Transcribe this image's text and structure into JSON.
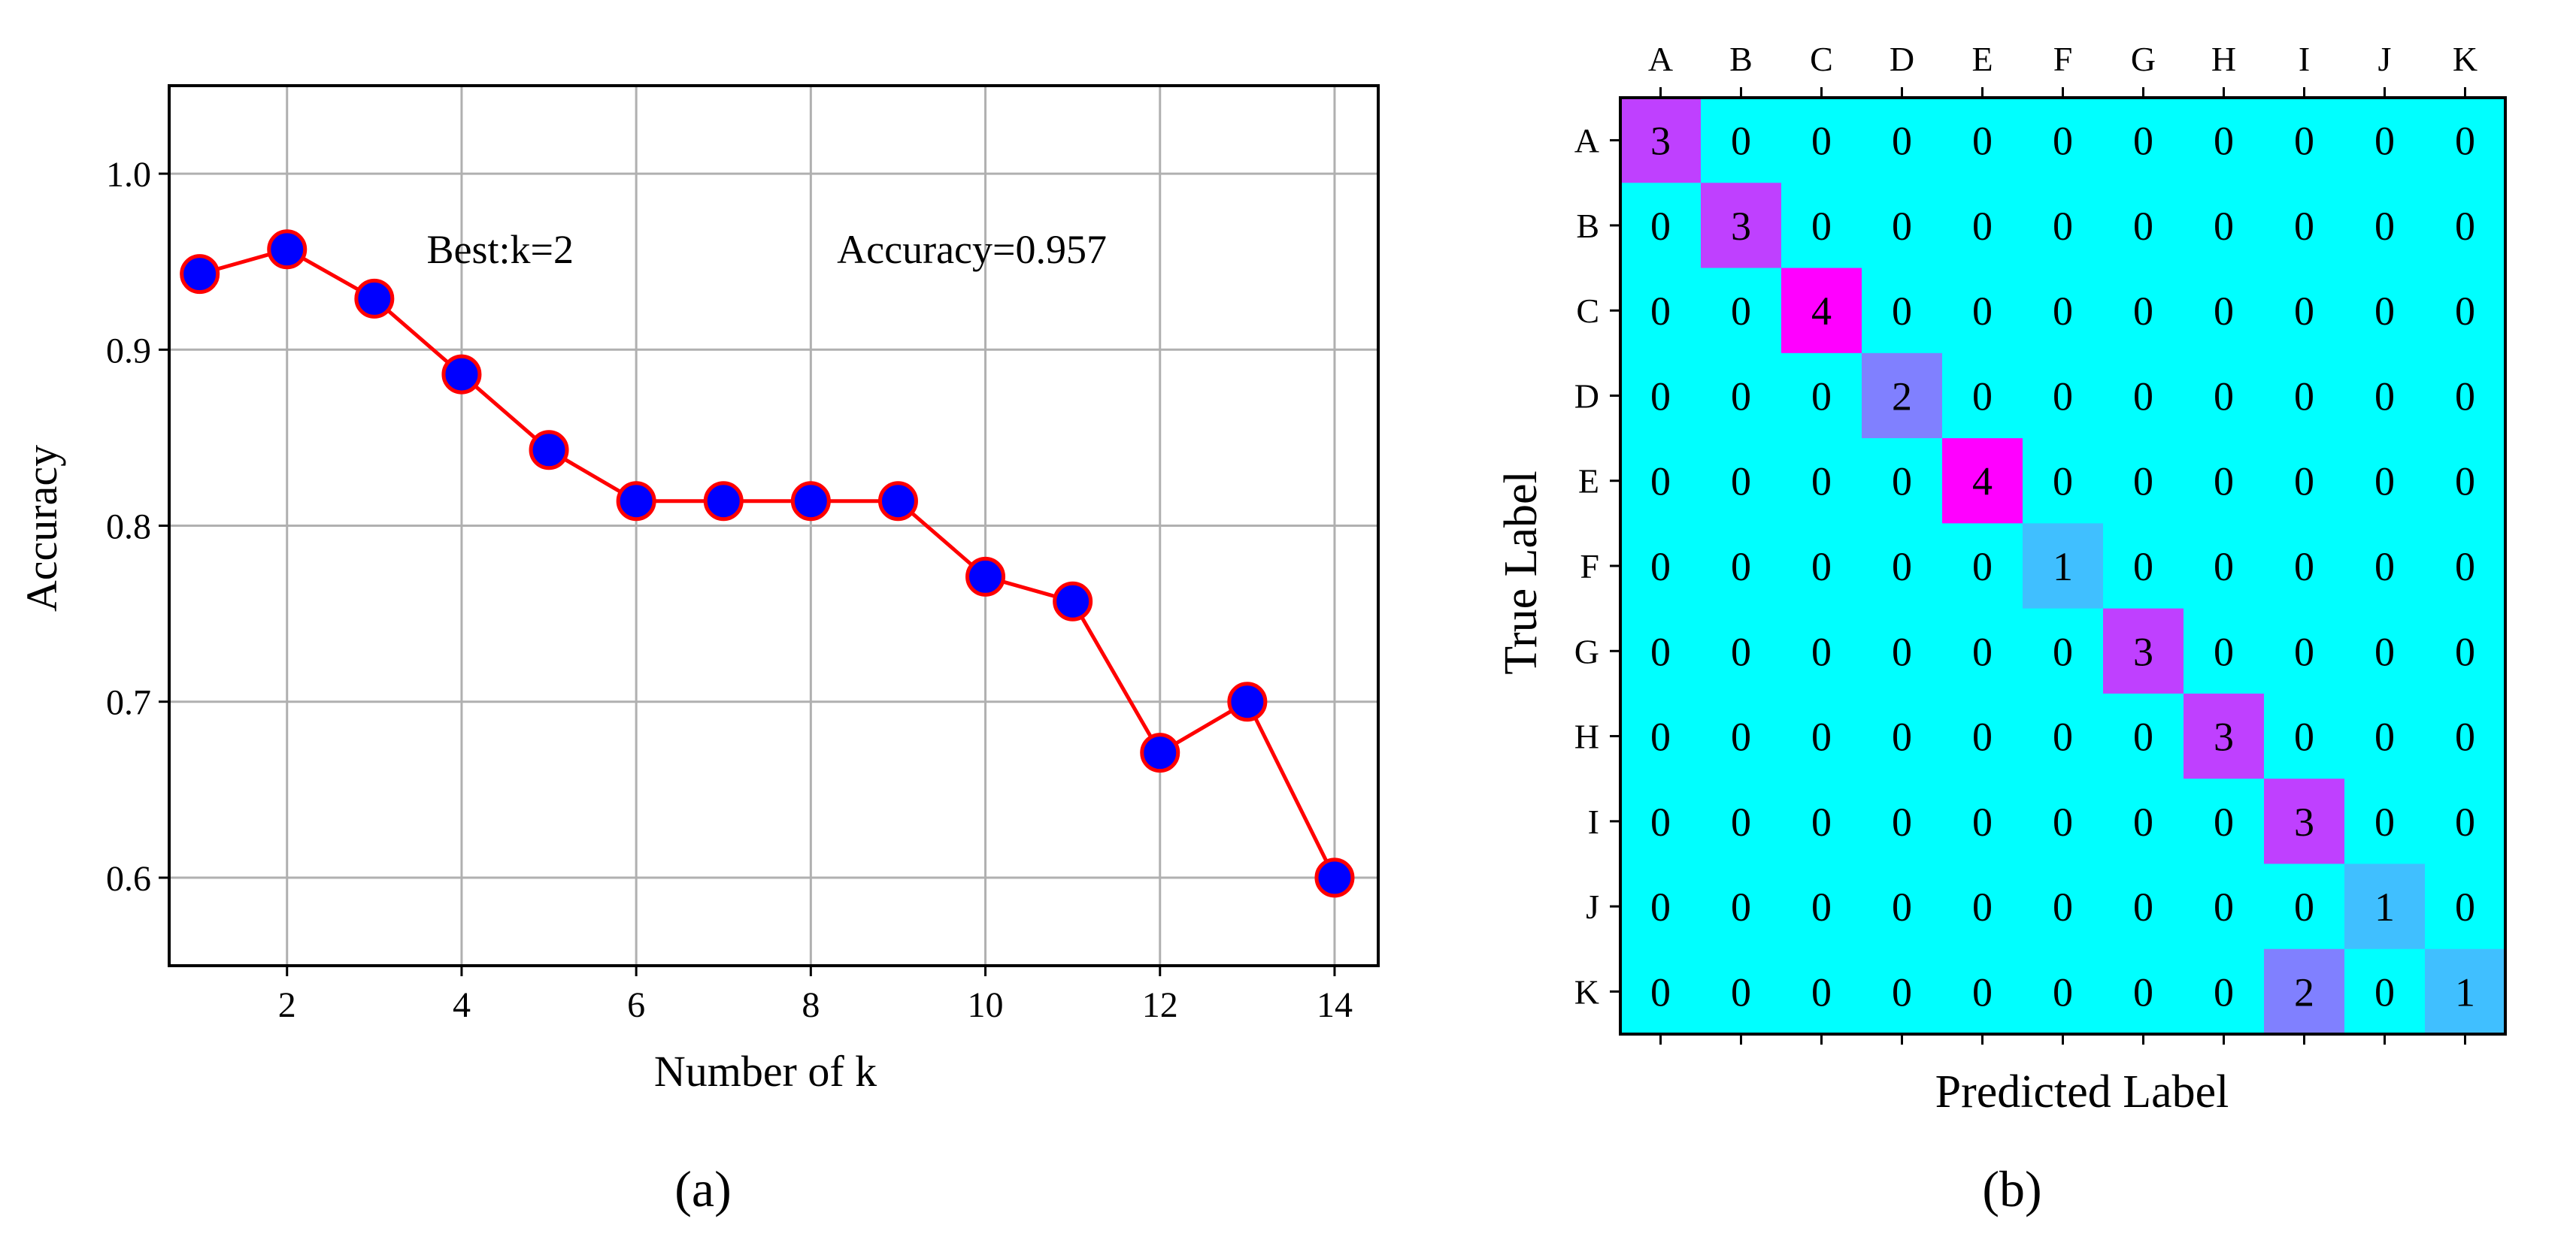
{
  "chart_data": [
    {
      "type": "line",
      "panel_label": "(a)",
      "title": "",
      "xlabel": "Number of k",
      "ylabel": "Accuracy",
      "xlim": [
        0.65,
        14.5
      ],
      "ylim": [
        0.55,
        1.05
      ],
      "xticks": [
        2,
        4,
        6,
        8,
        10,
        12,
        14
      ],
      "yticks": [
        "0.6",
        "0.7",
        "0.8",
        "0.9",
        "1.0"
      ],
      "grid": true,
      "series": [
        {
          "name": "Accuracy",
          "line_color": "#ff0000",
          "marker_color": "#0000ff",
          "x": [
            1,
            2,
            3,
            4,
            5,
            6,
            7,
            8,
            9,
            10,
            11,
            12,
            13,
            14
          ],
          "y": [
            0.943,
            0.957,
            0.929,
            0.886,
            0.843,
            0.814,
            0.814,
            0.814,
            0.814,
            0.771,
            0.757,
            0.671,
            0.7,
            0.6
          ]
        }
      ],
      "annotations": [
        {
          "text": "Best:k=2",
          "x": 3.6,
          "y": 0.957
        },
        {
          "text": "Accuracy=0.957",
          "x": 8.3,
          "y": 0.957
        }
      ]
    },
    {
      "type": "heatmap",
      "panel_label": "(b)",
      "title": "",
      "xlabel": "Predicted Label",
      "ylabel": "True Label",
      "labels": [
        "A",
        "B",
        "C",
        "D",
        "E",
        "F",
        "G",
        "H",
        "I",
        "J",
        "K"
      ],
      "colormap": {
        "0": "#00ffff",
        "1": "#40bfff",
        "2": "#8080ff",
        "3": "#bf40ff",
        "4": "#ff00ff"
      },
      "matrix": [
        [
          3,
          0,
          0,
          0,
          0,
          0,
          0,
          0,
          0,
          0,
          0
        ],
        [
          0,
          3,
          0,
          0,
          0,
          0,
          0,
          0,
          0,
          0,
          0
        ],
        [
          0,
          0,
          4,
          0,
          0,
          0,
          0,
          0,
          0,
          0,
          0
        ],
        [
          0,
          0,
          0,
          2,
          0,
          0,
          0,
          0,
          0,
          0,
          0
        ],
        [
          0,
          0,
          0,
          0,
          4,
          0,
          0,
          0,
          0,
          0,
          0
        ],
        [
          0,
          0,
          0,
          0,
          0,
          1,
          0,
          0,
          0,
          0,
          0
        ],
        [
          0,
          0,
          0,
          0,
          0,
          0,
          3,
          0,
          0,
          0,
          0
        ],
        [
          0,
          0,
          0,
          0,
          0,
          0,
          0,
          3,
          0,
          0,
          0
        ],
        [
          0,
          0,
          0,
          0,
          0,
          0,
          0,
          0,
          3,
          0,
          0
        ],
        [
          0,
          0,
          0,
          0,
          0,
          0,
          0,
          0,
          0,
          1,
          0
        ],
        [
          0,
          0,
          0,
          0,
          0,
          0,
          0,
          0,
          2,
          0,
          1
        ]
      ]
    }
  ]
}
